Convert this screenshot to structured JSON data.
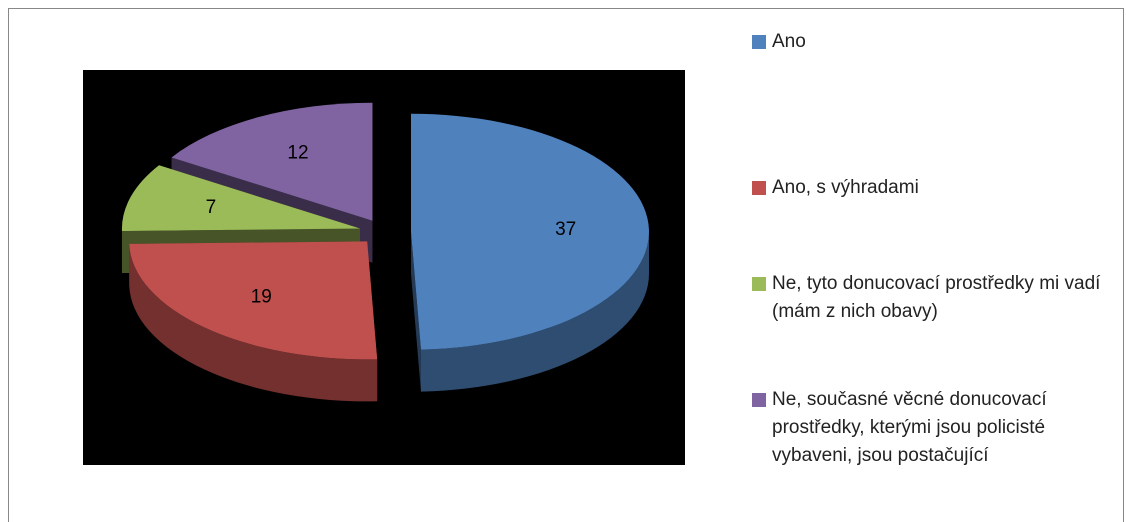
{
  "chart_data": {
    "type": "pie",
    "categories": [
      "Ano",
      "Ano, s výhradami",
      "Ne, tyto donucovací prostředky mi vadí (mám z nich obavy)",
      "Ne, současné věcné donucovací prostředky, kterými jsou policisté vybaveni, jsou postačující"
    ],
    "values": [
      37,
      19,
      7,
      12
    ],
    "colors": [
      "#4f81bd",
      "#c0504d",
      "#9bbb59",
      "#8064a2"
    ],
    "legend": "right"
  }
}
